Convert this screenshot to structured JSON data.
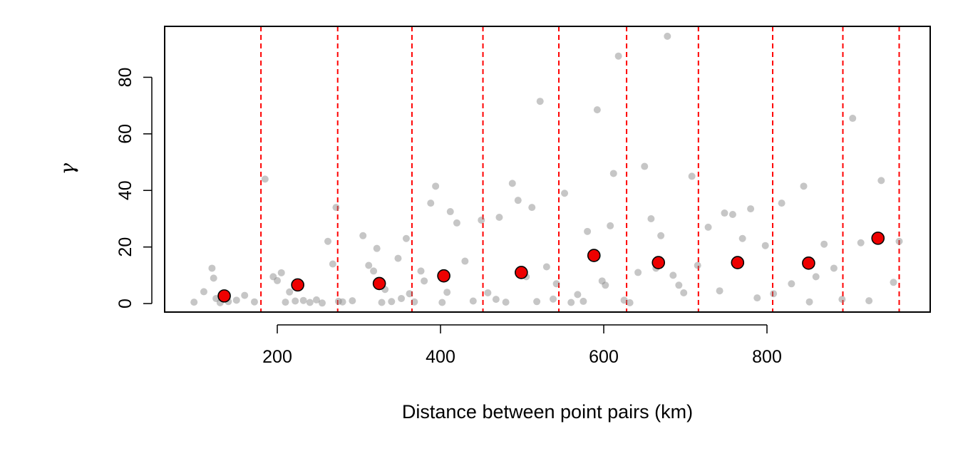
{
  "chart_data": {
    "type": "scatter",
    "title": "",
    "xlabel": "Distance between point pairs (km)",
    "ylabel": "γ",
    "xlim": [
      62,
      1000
    ],
    "ylim": [
      -3,
      98
    ],
    "xticks": [
      "200",
      "400",
      "600",
      "800"
    ],
    "yticks": [
      "0",
      "20",
      "40",
      "60",
      "80"
    ],
    "grid": false,
    "legend": "none",
    "colors": {
      "cloud_points": "#808080",
      "binned_means": "#ee0000",
      "bin_breaks": "#ff0000"
    },
    "bin_breaks": [
      62,
      180,
      274,
      365,
      452,
      545,
      628,
      716,
      807,
      893,
      962
    ],
    "binned_means": {
      "x": [
        135,
        225,
        325,
        404,
        499,
        588,
        667,
        764,
        851,
        936
      ],
      "y": [
        2.7,
        6.6,
        7.1,
        9.8,
        11.0,
        17.0,
        14.5,
        14.5,
        14.3,
        23.1
      ]
    },
    "cloud": {
      "x": [
        98,
        110,
        120,
        122,
        125,
        130,
        140,
        150,
        160,
        172,
        185,
        195,
        200,
        205,
        210,
        215,
        222,
        232,
        240,
        248,
        255,
        262,
        268,
        272,
        275,
        280,
        292,
        305,
        312,
        318,
        322,
        328,
        332,
        340,
        348,
        352,
        358,
        362,
        368,
        376,
        380,
        388,
        394,
        402,
        408,
        412,
        420,
        430,
        440,
        450,
        458,
        468,
        472,
        480,
        488,
        495,
        505,
        512,
        518,
        522,
        530,
        538,
        542,
        552,
        560,
        568,
        575,
        580,
        592,
        598,
        602,
        608,
        612,
        618,
        625,
        632,
        642,
        650,
        658,
        664,
        670,
        678,
        685,
        692,
        698,
        708,
        715,
        728,
        742,
        748,
        758,
        770,
        780,
        788,
        798,
        808,
        818,
        830,
        845,
        852,
        860,
        870,
        882,
        892,
        905,
        915,
        925,
        940,
        955,
        962
      ],
      "y": [
        0.5,
        4.2,
        12.5,
        9.0,
        1.8,
        0.3,
        0.7,
        1.2,
        2.9,
        0.6,
        44.0,
        9.5,
        8.1,
        10.9,
        0.5,
        4.1,
        0.9,
        1.1,
        0.4,
        1.3,
        0.2,
        22.0,
        14.0,
        34.0,
        0.8,
        0.6,
        1.0,
        24.0,
        13.5,
        11.5,
        19.5,
        0.4,
        5.0,
        0.7,
        16.0,
        1.8,
        23.0,
        3.5,
        0.6,
        11.5,
        8.0,
        35.5,
        41.5,
        0.4,
        4.0,
        32.5,
        28.5,
        15.0,
        0.9,
        29.5,
        3.8,
        1.5,
        30.5,
        0.5,
        42.5,
        36.5,
        9.5,
        34.0,
        0.7,
        71.5,
        13.0,
        1.6,
        7.0,
        39.0,
        0.4,
        3.2,
        0.8,
        25.5,
        68.5,
        8.0,
        6.5,
        27.5,
        46.0,
        87.5,
        1.2,
        0.3,
        11.0,
        48.5,
        30.0,
        12.5,
        24.0,
        94.5,
        10.0,
        6.5,
        3.8,
        45.0,
        13.5,
        27.0,
        4.5,
        32.0,
        31.5,
        23.0,
        33.5,
        2.0,
        20.5,
        3.5,
        35.5,
        7.0,
        41.5,
        0.6,
        9.5,
        21.0,
        12.5,
        1.5,
        65.5,
        21.5,
        1.0,
        43.5,
        7.5,
        22.0
      ]
    }
  }
}
